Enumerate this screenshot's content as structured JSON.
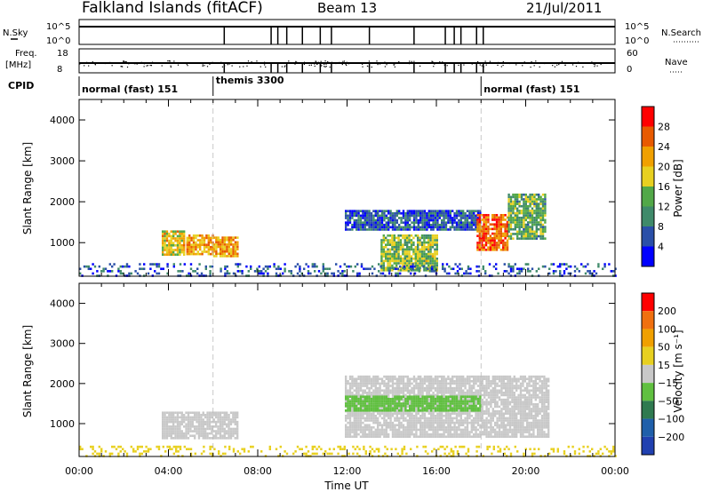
{
  "header": {
    "station": "Falkland Islands (fitACF)",
    "beam": "Beam 13",
    "date": "21/Jul/2011"
  },
  "strip": {
    "nsky_label": "N.Sky",
    "nsky_ticks": [
      "10^5",
      "10^0"
    ],
    "nsearch_label": "N.Search",
    "freq_label_1": "Freq.",
    "freq_label_2": "[MHz]",
    "freq_ticks": [
      "18",
      "8"
    ],
    "nave_label": "Nave",
    "nave_ticks": [
      "60",
      "0"
    ],
    "cpid_label": "CPID",
    "cpid_modes": [
      {
        "name": "normal (fast) 151",
        "start_hour": 0.0,
        "end_hour": 6.0
      },
      {
        "name": "themis 3300",
        "start_hour": 6.0,
        "end_hour": 18.0
      },
      {
        "name": "normal (fast) 151",
        "start_hour": 18.0,
        "end_hour": 24.0
      }
    ],
    "gap_hours": [
      6.5,
      8.6,
      8.9,
      9.3,
      10.0,
      10.8,
      11.3,
      13.0,
      15.0,
      16.4,
      16.8,
      17.1,
      17.8,
      18.1
    ]
  },
  "colors": {
    "power_scale": [
      "#0000ff",
      "#2a4fa8",
      "#3f8a6a",
      "#52a848",
      "#e8d020",
      "#f0a000",
      "#e85a00",
      "#ff0000"
    ],
    "velocity_scale": [
      "#2040b0",
      "#1f5faa",
      "#2f7a50",
      "#60c040",
      "#c8c8c8",
      "#e8d020",
      "#f0a000",
      "#f07010",
      "#ff0000"
    ],
    "ground_scatter": "#c8c8c8"
  },
  "chart_data": [
    {
      "type": "heatmap",
      "name": "power",
      "xlabel": "",
      "ylabel": "Slant Range [km]",
      "xlim": [
        0,
        24
      ],
      "ylim": [
        180,
        4500
      ],
      "yticks": [
        1000,
        2000,
        3000,
        4000
      ],
      "colorbar": {
        "label": "Power [dB]",
        "ticks": [
          "28",
          "24",
          "20",
          "16",
          "12",
          "8",
          "4"
        ],
        "range": [
          0,
          30
        ]
      },
      "regions": [
        {
          "t0": 3.7,
          "t1": 4.7,
          "r0": 700,
          "r1": 1300,
          "value": 18
        },
        {
          "t0": 4.8,
          "t1": 6.0,
          "r0": 700,
          "r1": 1200,
          "value": 20
        },
        {
          "t0": 6.0,
          "t1": 7.1,
          "r0": 650,
          "r1": 1150,
          "value": 20
        },
        {
          "t0": 11.9,
          "t1": 18.0,
          "r0": 1300,
          "r1": 1800,
          "value": 6
        },
        {
          "t0": 13.5,
          "t1": 16.0,
          "r0": 350,
          "r1": 1200,
          "value": 14
        },
        {
          "t0": 17.8,
          "t1": 19.2,
          "r0": 850,
          "r1": 1700,
          "value": 24
        },
        {
          "t0": 19.2,
          "t1": 20.9,
          "r0": 1100,
          "r1": 2200,
          "value": 12
        },
        {
          "t0": 0.0,
          "t1": 24.0,
          "r0": 180,
          "r1": 500,
          "value": 6
        }
      ]
    },
    {
      "type": "heatmap",
      "name": "velocity",
      "xlabel": "Time UT",
      "ylabel": "Slant Range [km]",
      "xlim": [
        0,
        24
      ],
      "ylim": [
        180,
        4500
      ],
      "xticks": [
        "00:00",
        "04:00",
        "08:00",
        "12:00",
        "16:00",
        "20:00",
        "00:00"
      ],
      "yticks": [
        1000,
        2000,
        3000,
        4000
      ],
      "colorbar": {
        "label": "Velocity [m s⁻¹]",
        "ticks": [
          "200",
          "100",
          "50",
          "15",
          "−15",
          "−50",
          "−100",
          "−200"
        ],
        "range": [
          -250,
          250
        ]
      },
      "regions": [
        {
          "t0": 3.7,
          "t1": 7.1,
          "r0": 650,
          "r1": 1300,
          "value": 0
        },
        {
          "t0": 11.9,
          "t1": 21.0,
          "r0": 700,
          "r1": 2200,
          "value": 0
        },
        {
          "t0": 11.9,
          "t1": 18.0,
          "r0": 1300,
          "r1": 1700,
          "value": 40
        },
        {
          "t0": 0.0,
          "t1": 24.0,
          "r0": 180,
          "r1": 450,
          "value": -40
        }
      ]
    }
  ]
}
